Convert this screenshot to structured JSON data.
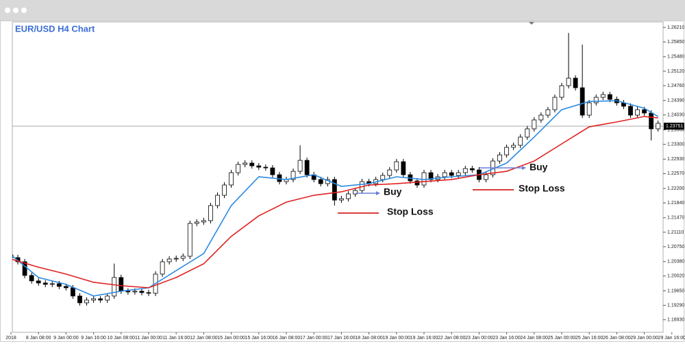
{
  "chart_data": {
    "type": "candlestick",
    "title": "EUR/USD H4 Chart",
    "categories": [
      "2018",
      null,
      null,
      null,
      "8 Jan 08:00",
      null,
      null,
      null,
      "9 Jan 00:00",
      null,
      null,
      null,
      "9 Jan 16:00",
      null,
      null,
      null,
      "10 Jan 08:00",
      null,
      null,
      null,
      "11 Jan 00:00",
      null,
      null,
      null,
      "11 Jan 16:00",
      null,
      null,
      null,
      "12 Jan 08:00",
      null,
      null,
      null,
      "15 Jan 00:00",
      null,
      null,
      null,
      "15 Jan 16:00",
      null,
      null,
      null,
      "16 Jan 08:00",
      null,
      null,
      null,
      "17 Jan 00:00",
      null,
      null,
      null,
      "17 Jan 16:00",
      null,
      null,
      null,
      "18 Jan 08:00",
      null,
      null,
      null,
      "19 Jan 00:00",
      null,
      null,
      null,
      "19 Jan 16:00",
      null,
      null,
      null,
      "22 Jan 08:00",
      null,
      null,
      null,
      "23 Jan 00:00",
      null,
      null,
      null,
      "23 Jan 16:00",
      null,
      null,
      null,
      "24 Jan 08:00",
      null,
      null,
      null,
      "25 Jan 00:00",
      null,
      null,
      null,
      "25 Jan 16:00",
      null,
      null,
      null,
      "26 Jan 08:00",
      null,
      null,
      null,
      "29 Jan 00:00",
      null,
      null,
      null,
      "29 Jan 16:00"
    ],
    "open": [
      1.20546,
      1.20478,
      1.20375,
      1.20034,
      1.19898,
      1.19846,
      1.19812,
      1.19829,
      1.19761,
      1.19727,
      1.19522,
      1.19352,
      1.1942,
      1.19454,
      1.1942,
      1.19522,
      1.19983,
      1.19642,
      1.19624,
      1.19642,
      1.19607,
      1.1959,
      1.20068,
      1.20375,
      1.20443,
      1.2046,
      1.20512,
      1.2133,
      1.21365,
      1.21399,
      1.21774,
      1.2203,
      1.22286,
      1.22593,
      1.22798,
      1.22832,
      1.22763,
      1.22729,
      1.22712,
      1.22542,
      1.22371,
      1.22422,
      1.22627,
      1.229,
      1.22542,
      1.22422,
      1.2232,
      1.22422,
      1.2191,
      1.21945,
      1.22064,
      1.22149,
      1.22371,
      1.2232,
      1.22422,
      1.22525,
      1.22661,
      1.22866,
      1.22542,
      1.22388,
      1.22286,
      1.22593,
      1.22422,
      1.22491,
      1.22593,
      1.22525,
      1.22593,
      1.22695,
      1.22661,
      1.22422,
      1.22542,
      1.22883,
      1.23036,
      1.23224,
      1.23275,
      1.2348,
      1.23685,
      1.23907,
      1.24026,
      1.24162,
      1.2447,
      1.2476,
      1.24947,
      1.24708,
      1.24026,
      1.24333,
      1.2447,
      1.24538,
      1.24418,
      1.24333,
      1.24248,
      1.24026,
      1.24162,
      1.24078,
      1.23685,
      null,
      null
    ],
    "high": [
      1.20616,
      1.20548,
      1.20445,
      1.20104,
      1.19968,
      1.19916,
      1.19899,
      1.19899,
      1.19831,
      1.19797,
      1.19592,
      1.1949,
      1.19524,
      1.19524,
      1.19592,
      1.2033,
      1.20053,
      1.19712,
      1.19712,
      1.19712,
      1.19677,
      1.20138,
      1.20445,
      1.20513,
      1.2053,
      1.20582,
      1.214,
      1.21435,
      1.21469,
      1.21844,
      1.221,
      1.22356,
      1.22663,
      1.22868,
      1.22902,
      1.22902,
      1.22833,
      1.22799,
      1.22782,
      1.22612,
      1.22492,
      1.22697,
      1.23275,
      1.2297,
      1.22612,
      1.22492,
      1.22492,
      1.22492,
      1.22015,
      1.22134,
      1.22219,
      1.22441,
      1.22441,
      1.22492,
      1.22595,
      1.22731,
      1.22936,
      1.22936,
      1.22612,
      1.22458,
      1.22663,
      1.22663,
      1.22561,
      1.22663,
      1.22663,
      1.22663,
      1.22765,
      1.22765,
      1.22731,
      1.22612,
      1.22953,
      1.23106,
      1.23294,
      1.23345,
      1.2355,
      1.23755,
      1.23977,
      1.24096,
      1.24232,
      1.2454,
      1.2483,
      1.26072,
      1.25017,
      1.25783,
      1.24403,
      1.2454,
      1.24608,
      1.24608,
      1.24488,
      1.24403,
      1.24318,
      1.24232,
      1.24232,
      1.24148,
      1.23892,
      null,
      null
    ],
    "low": [
      1.20408,
      1.20305,
      1.19964,
      1.19828,
      1.19776,
      1.19742,
      1.19742,
      1.19691,
      1.19657,
      1.19452,
      1.19282,
      1.19282,
      1.1935,
      1.1935,
      1.1935,
      1.19452,
      1.19572,
      1.19554,
      1.19554,
      1.19537,
      1.1952,
      1.1952,
      1.19998,
      1.20305,
      1.20373,
      1.2039,
      1.20442,
      1.2126,
      1.21295,
      1.21329,
      1.21704,
      1.2196,
      1.22216,
      1.22523,
      1.22728,
      1.22693,
      1.22659,
      1.22642,
      1.22472,
      1.22301,
      1.22301,
      1.22352,
      1.22557,
      1.22472,
      1.22352,
      1.2225,
      1.2225,
      1.21774,
      1.2184,
      1.21875,
      1.21994,
      1.22079,
      1.2225,
      1.2225,
      1.22352,
      1.22455,
      1.22591,
      1.22472,
      1.22318,
      1.22216,
      1.22216,
      1.22352,
      1.22352,
      1.22421,
      1.22455,
      1.22455,
      1.22523,
      1.22591,
      1.22352,
      1.22352,
      1.22472,
      1.22813,
      1.22966,
      1.23154,
      1.23205,
      1.2341,
      1.23615,
      1.23837,
      1.23956,
      1.24092,
      1.244,
      1.2469,
      1.24638,
      1.23956,
      1.23956,
      1.24263,
      1.244,
      1.24348,
      1.24263,
      1.24178,
      1.23956,
      1.23956,
      1.24008,
      1.23395,
      1.23615,
      null,
      null
    ],
    "close": [
      1.20478,
      1.20375,
      1.20034,
      1.19898,
      1.19846,
      1.19812,
      1.19829,
      1.19761,
      1.19727,
      1.19522,
      1.19352,
      1.1942,
      1.19454,
      1.1942,
      1.19522,
      1.19983,
      1.19642,
      1.19624,
      1.19642,
      1.19607,
      1.1959,
      1.20068,
      1.20375,
      1.20443,
      1.2046,
      1.20512,
      1.2133,
      1.21365,
      1.21399,
      1.21774,
      1.2203,
      1.22286,
      1.22593,
      1.22798,
      1.22832,
      1.22763,
      1.22729,
      1.22712,
      1.22542,
      1.22371,
      1.22422,
      1.22627,
      1.229,
      1.22542,
      1.22422,
      1.2232,
      1.22422,
      1.2191,
      1.21945,
      1.22064,
      1.22149,
      1.22371,
      1.2232,
      1.22422,
      1.22525,
      1.22661,
      1.22866,
      1.22542,
      1.22388,
      1.22286,
      1.22593,
      1.22422,
      1.22491,
      1.22593,
      1.22525,
      1.22593,
      1.22695,
      1.22661,
      1.22422,
      1.22542,
      1.22883,
      1.23036,
      1.23224,
      1.23275,
      1.2348,
      1.23685,
      1.23907,
      1.24026,
      1.24162,
      1.2447,
      1.2476,
      1.24947,
      1.24708,
      1.24026,
      1.24333,
      1.2447,
      1.24538,
      1.24418,
      1.24333,
      1.24248,
      1.24026,
      1.24162,
      1.24078,
      1.23685,
      1.23822,
      null,
      null
    ],
    "moving_averages": [
      {
        "color": "#2a8ae0",
        "x": [
          0,
          4,
          8,
          12,
          16,
          20,
          24,
          28,
          32,
          36,
          40,
          44,
          48,
          52,
          56,
          60,
          64,
          68,
          72,
          76,
          80,
          84,
          88,
          92,
          94
        ],
        "values": [
          1.20546,
          1.19983,
          1.19812,
          1.19522,
          1.19642,
          1.19727,
          1.20154,
          1.2058,
          1.21774,
          1.22491,
          1.22422,
          1.22542,
          1.22252,
          1.2232,
          1.22491,
          1.22422,
          1.22491,
          1.22542,
          1.22832,
          1.2348,
          1.24162,
          1.24367,
          1.24385,
          1.24197,
          1.23992
        ]
      },
      {
        "color": "#e02020",
        "x": [
          0,
          4,
          8,
          12,
          16,
          20,
          24,
          28,
          32,
          36,
          40,
          44,
          48,
          52,
          56,
          60,
          64,
          68,
          72,
          76,
          80,
          84,
          88,
          92,
          94
        ],
        "values": [
          1.20443,
          1.20239,
          1.20068,
          1.19864,
          1.19778,
          1.19727,
          1.19983,
          1.20324,
          1.21007,
          1.21519,
          1.2186,
          1.2203,
          1.22116,
          1.22286,
          1.2232,
          1.22371,
          1.22422,
          1.22542,
          1.22627,
          1.22883,
          1.2331,
          1.23736,
          1.23856,
          1.23992,
          1.23958
        ]
      }
    ],
    "ylim": [
      1.18618,
      1.26347
    ],
    "yticks": [
      {
        "value": 1.2621,
        "label": "1.26210"
      },
      {
        "value": 1.2585,
        "label": "1.25850"
      },
      {
        "value": 1.2548,
        "label": "1.25480"
      },
      {
        "value": 1.2512,
        "label": "1.25120"
      },
      {
        "value": 1.2476,
        "label": "1.24760"
      },
      {
        "value": 1.2439,
        "label": "1.24390"
      },
      {
        "value": 1.2403,
        "label": "1.24030"
      },
      {
        "value": 1.2366,
        "label": "1.23660"
      },
      {
        "value": 1.233,
        "label": "1.23300"
      },
      {
        "value": 1.2293,
        "label": "1.22930"
      },
      {
        "value": 1.2257,
        "label": "1.22570"
      },
      {
        "value": 1.222,
        "label": "1.22200"
      },
      {
        "value": 1.2184,
        "label": "1.21840"
      },
      {
        "value": 1.2147,
        "label": "1.21470"
      },
      {
        "value": 1.2111,
        "label": "1.21110"
      },
      {
        "value": 1.2075,
        "label": "1.20750"
      },
      {
        "value": 1.2038,
        "label": "1.20380"
      },
      {
        "value": 1.2002,
        "label": "1.20020"
      },
      {
        "value": 1.1965,
        "label": "1.19650"
      },
      {
        "value": 1.1929,
        "label": "1.19290"
      },
      {
        "value": 1.1893,
        "label": "1.18930"
      }
    ],
    "current_price": 1.23751,
    "annotations": [
      "Buy",
      "Stop Loss",
      "Buy",
      "Stop Loss"
    ]
  }
}
